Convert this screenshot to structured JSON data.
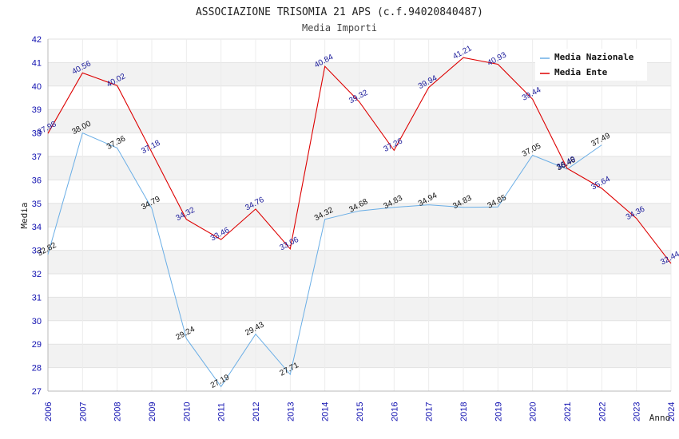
{
  "chart_data": {
    "type": "line",
    "title": "ASSOCIAZIONE TRISOMIA 21 APS (c.f.94020840487)",
    "subtitle": "Media Importi",
    "xlabel": "Anno",
    "ylabel": "Media",
    "ylim": [
      27,
      42
    ],
    "yticks": [
      27,
      28,
      29,
      30,
      31,
      32,
      33,
      34,
      35,
      36,
      37,
      38,
      39,
      40,
      41,
      42
    ],
    "categories": [
      "2006",
      "2007",
      "2008",
      "2009",
      "2010",
      "2011",
      "2012",
      "2013",
      "2014",
      "2015",
      "2016",
      "2017",
      "2018",
      "2019",
      "2020",
      "2021",
      "2022",
      "2023",
      "2024"
    ],
    "grid": "horizontal alternating bands",
    "legend_position": "top-right",
    "series": [
      {
        "name": "Media Nazionale",
        "color": "#6aaee6",
        "values": [
          32.82,
          38.0,
          37.36,
          34.79,
          29.24,
          27.19,
          29.43,
          27.71,
          34.32,
          34.68,
          34.83,
          34.94,
          34.83,
          34.85,
          37.05,
          36.46,
          37.49,
          null,
          null
        ],
        "labels": [
          "32.82",
          "38.00",
          "37.36",
          "34.79",
          "29.24",
          "27.19",
          "29.43",
          "27.71",
          "34.32",
          "34.68",
          "34.83",
          "34.94",
          "34.83",
          "34.85",
          "37.05",
          "36.46",
          "37.49",
          "",
          ""
        ]
      },
      {
        "name": "Media Ente",
        "color": "#dd0000",
        "values": [
          37.98,
          40.56,
          40.02,
          37.18,
          34.32,
          33.46,
          34.76,
          33.06,
          40.84,
          39.32,
          37.26,
          39.94,
          41.21,
          40.93,
          39.44,
          36.49,
          35.64,
          34.36,
          32.44
        ],
        "labels": [
          "37.98",
          "40.56",
          "40.02",
          "37.18",
          "34.32",
          "33.46",
          "34.76",
          "33.06",
          "40.84",
          "39.32",
          "37.26",
          "39.94",
          "41.21",
          "40.93",
          "39.44",
          "36.49",
          "35.64",
          "34.36",
          "32.44"
        ]
      }
    ]
  }
}
